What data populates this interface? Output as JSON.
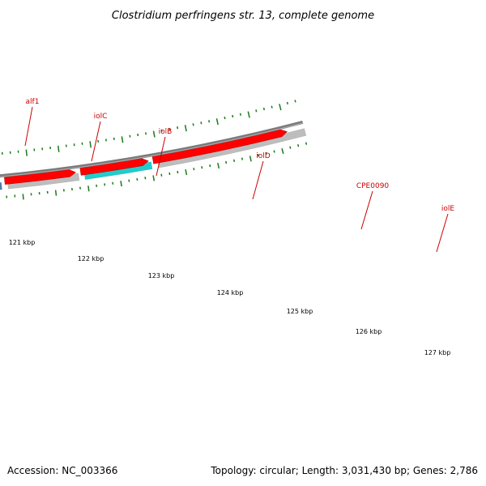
{
  "title": "Clostridium perfringens str. 13, complete genome",
  "accession_text": "Accession: NC_003366",
  "summary_text": "Topology: circular; Length: 3,031,430 bp; Genes: 2,786",
  "colors": {
    "backbone": "#808080",
    "cds": "#ff0000",
    "gene_cyan": "#22cccc",
    "gene_blue": "#4f7fb0",
    "gene_gray": "#bdbdbd",
    "label": "#cc0000",
    "ticks": "#1a7a1a"
  },
  "genes": [
    {
      "name": "alf1",
      "label": "alf1"
    },
    {
      "name": "iolC",
      "label": "iolC"
    },
    {
      "name": "iolB",
      "label": "iolB"
    },
    {
      "name": "iolD",
      "label": "iolD"
    },
    {
      "name": "CPE0090",
      "label": "CPE0090"
    },
    {
      "name": "iolE",
      "label": "iolE"
    }
  ],
  "scale_labels": [
    "121 kbp",
    "122 kbp",
    "123 kbp",
    "124 kbp",
    "125 kbp",
    "126 kbp",
    "127 kbp"
  ]
}
